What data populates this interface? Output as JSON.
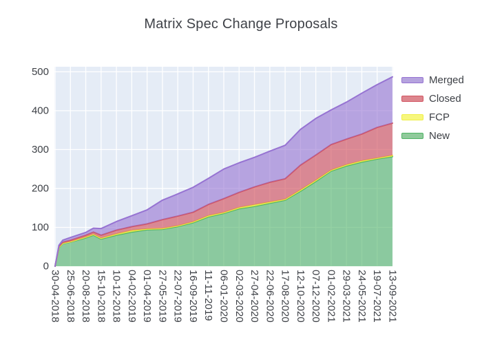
{
  "title": "Matrix Spec Change Proposals",
  "plot": {
    "background": "#e5ecf6",
    "gridline_color": "#ffffff",
    "tick_text_color": "#3d4046",
    "title_color": "#3f4248"
  },
  "legend": {
    "items": [
      {
        "label": "Merged",
        "line": "#9673d2",
        "fill": "#b5a3de"
      },
      {
        "label": "Closed",
        "line": "#d25360",
        "fill": "#dd868e"
      },
      {
        "label": "FCP",
        "line": "#efef45",
        "fill": "#f7f77d"
      },
      {
        "label": "New",
        "line": "#4fb365",
        "fill": "#90ca9b"
      }
    ]
  },
  "axes": {
    "y_ticks": [
      "0",
      "100",
      "200",
      "300",
      "400",
      "500"
    ],
    "y_range": [
      0,
      513
    ],
    "x_tick_labels": [
      "30-04-2018",
      "25-06-2018",
      "20-08-2018",
      "15-10-2018",
      "10-12-2018",
      "04-02-2019",
      "01-04-2019",
      "27-05-2019",
      "22-07-2019",
      "16-09-2019",
      "11-11-2019",
      "06-01-2020",
      "02-03-2020",
      "27-04-2020",
      "22-06-2020",
      "17-08-2020",
      "12-10-2020",
      "07-12-2020",
      "01-02-2021",
      "29-03-2021",
      "24-05-2021",
      "19-07-2021",
      "13-09-2021"
    ]
  },
  "chart_data": {
    "type": "area",
    "stacked": true,
    "title": "Matrix Spec Change Proposals",
    "xlabel": "",
    "ylabel": "",
    "ylim": [
      0,
      500
    ],
    "grid": true,
    "legend_position": "right",
    "stack_order_bottom_to_top": [
      "New",
      "FCP",
      "Closed",
      "Merged"
    ],
    "x": [
      "30-04-2018",
      "14-05-2018",
      "28-05-2018",
      "25-06-2018",
      "20-08-2018",
      "17-09-2018",
      "15-10-2018",
      "10-12-2018",
      "04-02-2019",
      "01-04-2019",
      "27-05-2019",
      "22-07-2019",
      "16-09-2019",
      "11-11-2019",
      "06-01-2020",
      "02-03-2020",
      "27-04-2020",
      "22-06-2020",
      "17-08-2020",
      "12-10-2020",
      "07-12-2020",
      "01-02-2021",
      "29-03-2021",
      "24-05-2021",
      "19-07-2021",
      "13-09-2021"
    ],
    "series": [
      {
        "name": "New",
        "line": "#4fb365",
        "fill_opacity": 0.6,
        "values": [
          0,
          48,
          58,
          62,
          73,
          80,
          70,
          80,
          88,
          94,
          95,
          102,
          112,
          127,
          136,
          148,
          154,
          162,
          170,
          193,
          218,
          245,
          258,
          268,
          276,
          282
        ]
      },
      {
        "name": "FCP",
        "line": "#efef45",
        "fill_opacity": 0.7,
        "values": [
          0,
          1,
          1,
          1,
          2,
          2,
          2,
          3,
          4,
          2,
          2,
          2,
          2,
          3,
          2,
          3,
          4,
          3,
          2,
          3,
          3,
          2,
          3,
          3,
          2,
          3
        ]
      },
      {
        "name": "Closed",
        "line": "#d25360",
        "fill_opacity": 0.65,
        "values": [
          0,
          2,
          3,
          4,
          5,
          6,
          8,
          10,
          10,
          13,
          23,
          25,
          25,
          29,
          36,
          39,
          46,
          51,
          53,
          64,
          65,
          66,
          66,
          69,
          79,
          83
        ]
      },
      {
        "name": "Merged",
        "line": "#9673d2",
        "fill_opacity": 0.6,
        "values": [
          0,
          3,
          5,
          7,
          7,
          10,
          17,
          22,
          28,
          36,
          50,
          57,
          64,
          67,
          76,
          76,
          76,
          80,
          86,
          92,
          94,
          89,
          95,
          105,
          110,
          119
        ]
      }
    ]
  }
}
